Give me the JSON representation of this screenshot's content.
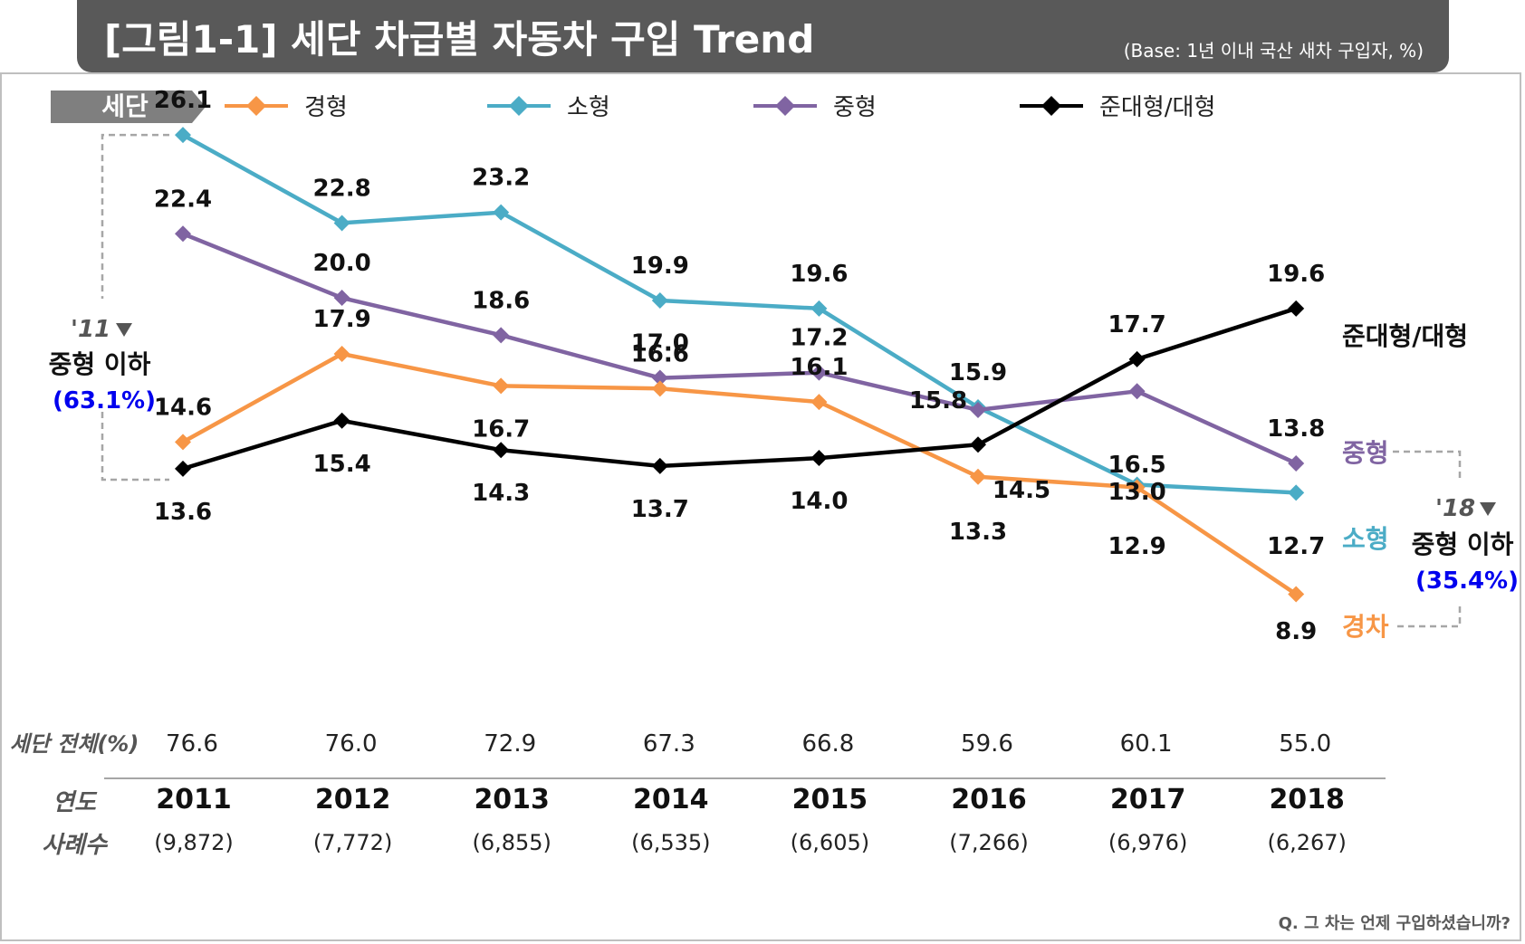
{
  "header": {
    "title": "[그림1-1] 세단 차급별 자동차 구입 Trend",
    "base_note": "(Base: 1년 이내 국산 새차 구입자, %)"
  },
  "legend": {
    "tag": "세단",
    "items": [
      {
        "label": "경형",
        "color": "#f79646"
      },
      {
        "label": "소형",
        "color": "#4bacc6"
      },
      {
        "label": "중형",
        "color": "#8064a2"
      },
      {
        "label": "준대형/대형",
        "color": "#000000"
      }
    ]
  },
  "chart_data": {
    "type": "line",
    "categories": [
      "2011",
      "2012",
      "2013",
      "2014",
      "2015",
      "2016",
      "2017",
      "2018"
    ],
    "series": [
      {
        "name": "경형",
        "color": "#f79646",
        "values": [
          14.6,
          17.9,
          16.7,
          16.6,
          16.1,
          13.3,
          12.9,
          8.9
        ]
      },
      {
        "name": "소형",
        "color": "#4bacc6",
        "values": [
          26.1,
          22.8,
          23.2,
          19.9,
          19.6,
          15.9,
          13.0,
          12.7
        ]
      },
      {
        "name": "중형",
        "color": "#8064a2",
        "values": [
          22.4,
          20.0,
          18.6,
          17.0,
          17.2,
          15.8,
          16.5,
          13.8
        ]
      },
      {
        "name": "준대형/대형",
        "color": "#000000",
        "values": [
          13.6,
          15.4,
          14.3,
          13.7,
          14.0,
          14.5,
          17.7,
          19.6
        ]
      }
    ],
    "end_labels": {
      "준대형/대형": "준대형/대형",
      "중형": "중형",
      "소형": "소형",
      "경형": "경차"
    },
    "annotations": {
      "left": {
        "year": "'11",
        "text": "중형 이하",
        "value": "(63.1%)"
      },
      "right": {
        "year": "'18",
        "text": "중형 이하",
        "value": "(35.4%)"
      }
    },
    "table": {
      "total_label": "세단 전체(%)",
      "total": [
        "76.6",
        "76.0",
        "72.9",
        "67.3",
        "66.8",
        "59.6",
        "60.1",
        "55.0"
      ],
      "year_label": "연도",
      "cases_label": "사례수",
      "cases": [
        "(9,872)",
        "(7,772)",
        "(6,855)",
        "(6,535)",
        "(6,605)",
        "(7,266)",
        "(6,976)",
        "(6,267)"
      ]
    },
    "grid": false,
    "legend_position": "top"
  },
  "footnote": "Q. 그 차는 언제 구입하셨습니까?"
}
